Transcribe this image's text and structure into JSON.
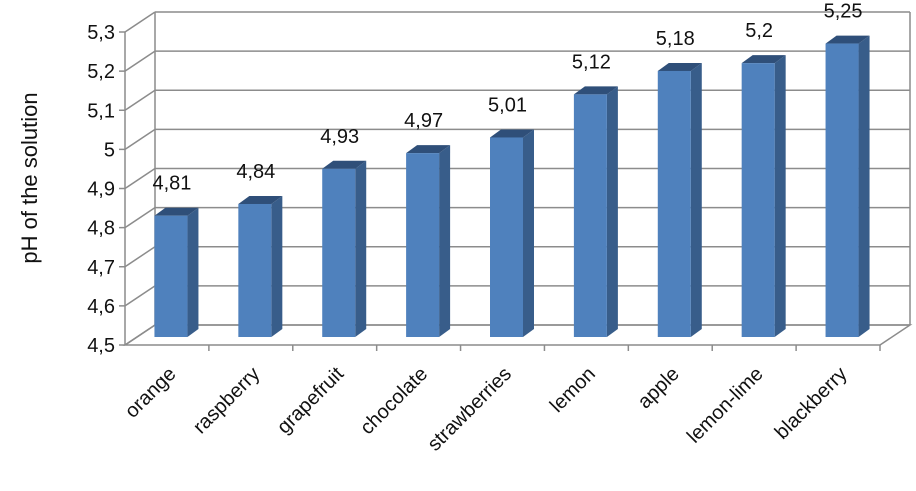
{
  "chart_data": {
    "type": "bar",
    "title": "",
    "xlabel": "",
    "ylabel": "pH of the solution",
    "categories": [
      "orange",
      "raspberry",
      "grapefruit",
      "chocolate",
      "strawberries",
      "lemon",
      "apple",
      "lemon-lime",
      "blackberry"
    ],
    "values": [
      4.81,
      4.84,
      4.93,
      4.97,
      5.01,
      5.12,
      5.18,
      5.2,
      5.25
    ],
    "data_labels": [
      "4,81",
      "4,84",
      "4,93",
      "4,97",
      "5,01",
      "5,12",
      "5,18",
      "5,2",
      "5,25"
    ],
    "ylim": [
      4.5,
      5.3
    ],
    "yticks": [
      "4,5",
      "4,6",
      "4,7",
      "4,8",
      "4,9",
      "5",
      "5,1",
      "5,2",
      "5,3"
    ],
    "grid": true,
    "legend": "none",
    "style": "3d-column",
    "colors": {
      "bar_front": "#4f81bd",
      "bar_side": "#385d8a",
      "bar_top": "#2f4f79",
      "grid": "#8c8c8c",
      "wall": "#ffffff"
    }
  }
}
